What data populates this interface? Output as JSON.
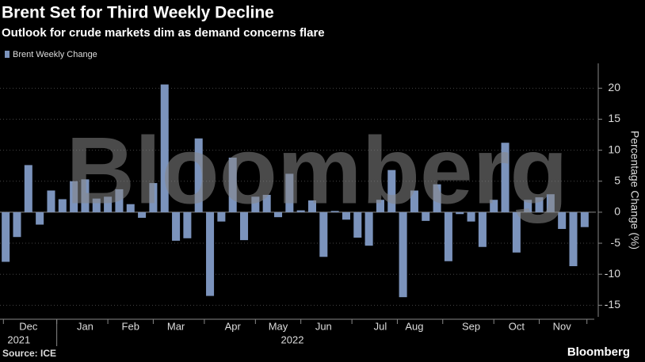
{
  "chart_data": {
    "type": "bar",
    "title": "Brent Set for Third Weekly Decline",
    "subtitle": "Outlook for crude markets dim as demand concerns flare",
    "watermark": "Bloomberg",
    "source": "Source: ICE",
    "logo": "Bloomberg",
    "y_label": "Percentage Change (%)",
    "years": [
      "2021",
      "2022"
    ],
    "categories": [
      null,
      null,
      "Dec",
      null,
      null,
      null,
      null,
      "Jan",
      null,
      null,
      null,
      "Feb",
      null,
      null,
      null,
      "Mar",
      null,
      null,
      null,
      null,
      "Apr",
      null,
      null,
      null,
      "May",
      null,
      null,
      null,
      "Jun",
      null,
      null,
      null,
      null,
      "Jul",
      null,
      null,
      "Aug",
      null,
      null,
      null,
      null,
      "Sep",
      null,
      null,
      null,
      "Oct",
      null,
      null,
      null,
      "Nov",
      null,
      null
    ],
    "series": [
      {
        "name": "Brent Weekly Change",
        "color": "#7b93bc",
        "values": [
          -8,
          -4,
          7.6,
          -2,
          3.5,
          2.1,
          5,
          5.3,
          2.2,
          2.5,
          3.7,
          1.3,
          -0.9,
          4.7,
          20.6,
          -4.6,
          -4.2,
          11.9,
          -13.5,
          -1.5,
          8.8,
          -4.5,
          2.5,
          2.8,
          -0.8,
          6.2,
          0.3,
          1.9,
          -7.2,
          0.2,
          -1.2,
          -4.1,
          -5.4,
          2,
          6.8,
          -13.7,
          3.5,
          -1.4,
          4.5,
          -7.9,
          -0.3,
          -1.5,
          -5.6,
          2,
          11.2,
          -6.5,
          2,
          2.4,
          2.9,
          -2.7,
          -8.7,
          -2.4
        ]
      }
    ],
    "ylim": [
      -17,
      24
    ],
    "yticks": [
      -15,
      -10,
      -5,
      0,
      5,
      10,
      15,
      20
    ],
    "grid": true
  }
}
